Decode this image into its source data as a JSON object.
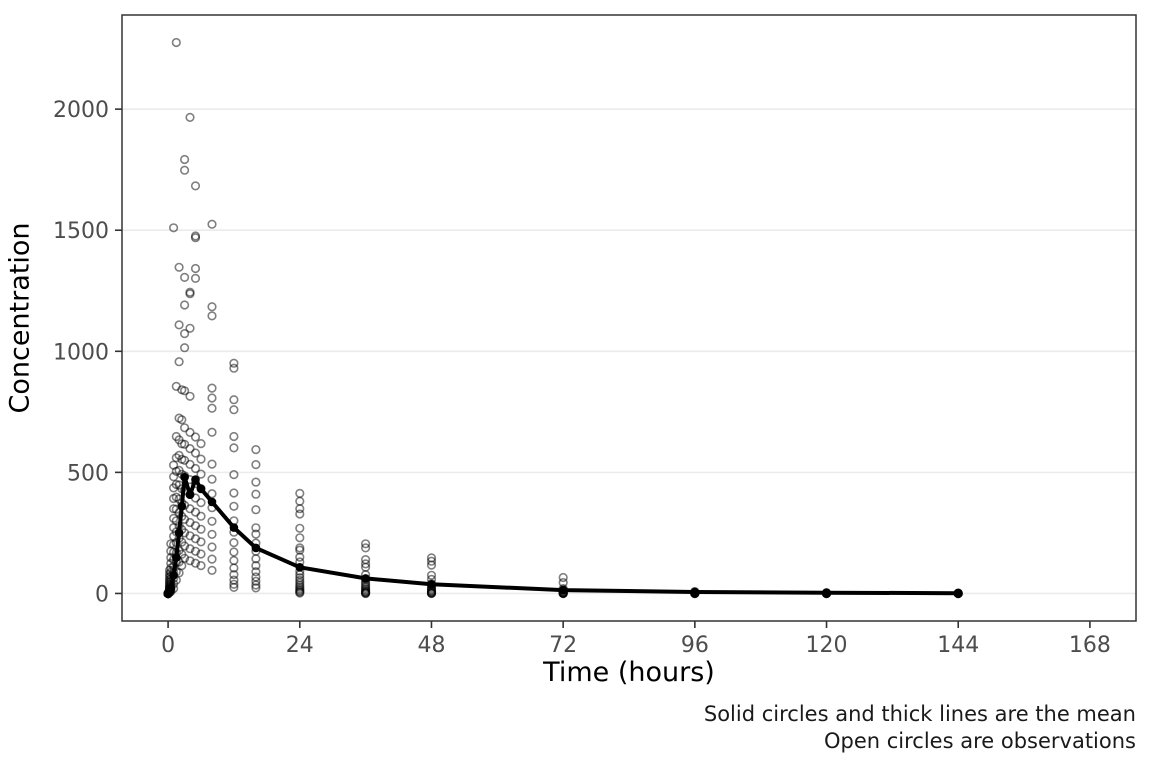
{
  "figure": {
    "background": "#ffffff",
    "panel_fill": "#ffffff",
    "panel_border_color": "#333333",
    "grid_color": "#ebebeb",
    "tick_color": "#333333",
    "tick_label_color": "#4d4d4d",
    "point_color": "#000000",
    "mean_color": "#000000"
  },
  "axes": {
    "x": {
      "title": "Time (hours)",
      "ticks": [
        0,
        24,
        48,
        72,
        96,
        120,
        144,
        168
      ]
    },
    "y": {
      "title": "Concentration",
      "ticks": [
        0,
        500,
        1000,
        1500,
        2000
      ]
    }
  },
  "caption": {
    "line1": "Solid circles and thick lines are the mean",
    "line2": "Open circles are observations"
  },
  "chart_data": {
    "type": "scatter",
    "title": "",
    "xlabel": "Time (hours)",
    "ylabel": "Concentration",
    "xlim": [
      0,
      168
    ],
    "ylim": [
      0,
      2275
    ],
    "x_ticks": [
      0,
      24,
      48,
      72,
      96,
      120,
      144,
      168
    ],
    "y_ticks": [
      0,
      500,
      1000,
      1500,
      2000
    ],
    "grid": "horizontal-major-only",
    "legend_position": "none",
    "annotations": [
      "Solid circles and thick lines are the mean",
      "Open circles are observations"
    ],
    "series": [
      {
        "name": "mean",
        "style": "thick-line-solid-circles",
        "x": [
          0,
          0.25,
          0.5,
          1,
          1.5,
          2,
          2.5,
          3,
          4,
          5,
          6,
          8,
          12,
          16,
          24,
          36,
          48,
          72,
          96,
          120,
          144
        ],
        "y": [
          0,
          8,
          22,
          75,
          148,
          250,
          360,
          480,
          408,
          470,
          432,
          378,
          272,
          188,
          108,
          62,
          38,
          14,
          6,
          3,
          1
        ]
      },
      {
        "name": "observations",
        "style": "open-circles",
        "groups": [
          {
            "t": 0,
            "values": [
              0,
              0,
              0,
              0,
              0,
              0,
              0,
              0,
              0,
              0,
              0,
              0,
              0,
              0,
              0,
              0
            ]
          },
          {
            "t": 0.25,
            "values": [
              4,
              7,
              10,
              14,
              18,
              22,
              27,
              33,
              40,
              48,
              57,
              68,
              80,
              95
            ]
          },
          {
            "t": 0.5,
            "values": [
              8,
              14,
              21,
              29,
              38,
              48,
              60,
              73,
              88,
              105,
              125,
              148,
              175,
              205
            ]
          },
          {
            "t": 1,
            "values": [
              20,
              40,
              62,
              86,
              112,
              140,
              170,
              202,
              236,
              272,
              310,
              350,
              392,
              436,
              482,
              530,
              1510
            ]
          },
          {
            "t": 1.5,
            "values": [
              55,
              90,
              128,
              168,
              210,
              254,
              300,
              348,
              398,
              450,
              504,
              560,
              648,
              855,
              2275
            ]
          },
          {
            "t": 2,
            "values": [
              85,
              130,
              178,
              228,
              280,
              334,
              390,
              448,
              508,
              570,
              634,
              724,
              957,
              1109,
              1347
            ]
          },
          {
            "t": 2.5,
            "values": [
              115,
              162,
              212,
              264,
              318,
              374,
              432,
              492,
              554,
              618,
              717,
              841
            ]
          },
          {
            "t": 3,
            "values": [
              145,
              196,
              250,
              306,
              364,
              424,
              486,
              550,
              616,
              684,
              837,
              1015,
              1073,
              1191,
              1305,
              1748,
              1792
            ]
          },
          {
            "t": 4,
            "values": [
              135,
              185,
              238,
              293,
              350,
              409,
              470,
              533,
              598,
              665,
              814,
              1095,
              1238,
              1244,
              1966
            ]
          },
          {
            "t": 5,
            "values": [
              125,
              174,
              226,
              280,
              336,
              394,
              454,
              516,
              580,
              646,
              1301,
              1342,
              1469,
              1476,
              1683
            ]
          },
          {
            "t": 6,
            "values": [
              115,
              163,
              213,
              265,
              319,
              375,
              433,
              493,
              555,
              619
            ]
          },
          {
            "t": 8,
            "values": [
              95,
              142,
              192,
              244,
              298,
              354,
              412,
              472,
              534,
              666,
              765,
              807,
              848,
              1146,
              1184,
              1525
            ]
          },
          {
            "t": 12,
            "values": [
              25,
              38,
              55,
              78,
              105,
              136,
              171,
              210,
              253,
              300,
              360,
              415,
              491,
              601,
              648,
              759,
              800,
              930,
              951
            ]
          },
          {
            "t": 16,
            "values": [
              23,
              35,
              50,
              68,
              90,
              115,
              143,
              174,
              208,
              245,
              271,
              346,
              410,
              460,
              532,
              594
            ]
          },
          {
            "t": 24,
            "values": [
              2,
              5,
              9,
              14,
              20,
              27,
              35,
              44,
              54,
              65,
              78,
              92,
              130,
              150,
              179,
              188,
              230,
              269,
              328,
              350,
              381,
              413
            ]
          },
          {
            "t": 36,
            "values": [
              0,
              1,
              3,
              5,
              8,
              12,
              17,
              23,
              30,
              38,
              47,
              57,
              78,
              108,
              122,
              140,
              188,
              205
            ]
          },
          {
            "t": 48,
            "values": [
              0,
              1,
              2,
              4,
              7,
              10,
              14,
              19,
              25,
              32,
              40,
              58,
              75,
              117,
              133,
              147
            ]
          },
          {
            "t": 72,
            "values": [
              0,
              0,
              1,
              1,
              2,
              3,
              5,
              7,
              10,
              14,
              20,
              45,
              66
            ]
          },
          {
            "t": 96,
            "values": [
              0,
              0,
              0,
              1,
              1,
              2,
              3,
              5,
              8
            ]
          },
          {
            "t": 120,
            "values": [
              0,
              0,
              0,
              0,
              1,
              1,
              2,
              3
            ]
          },
          {
            "t": 144,
            "values": [
              0,
              0,
              0,
              0,
              0,
              1,
              2
            ]
          }
        ]
      }
    ]
  }
}
